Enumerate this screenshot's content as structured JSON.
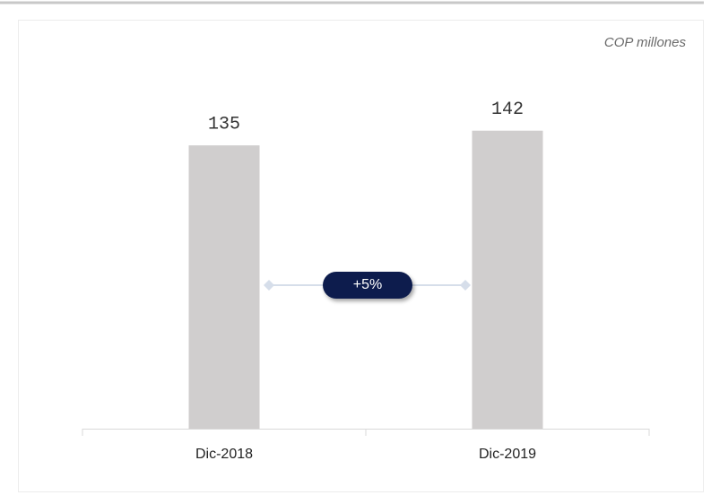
{
  "chart_data": {
    "type": "bar",
    "unit_label": "COP millones",
    "categories": [
      "Dic-2018",
      "Dic-2019"
    ],
    "values": [
      135,
      142
    ],
    "color": "#d0cece",
    "annotation": "+5%"
  }
}
